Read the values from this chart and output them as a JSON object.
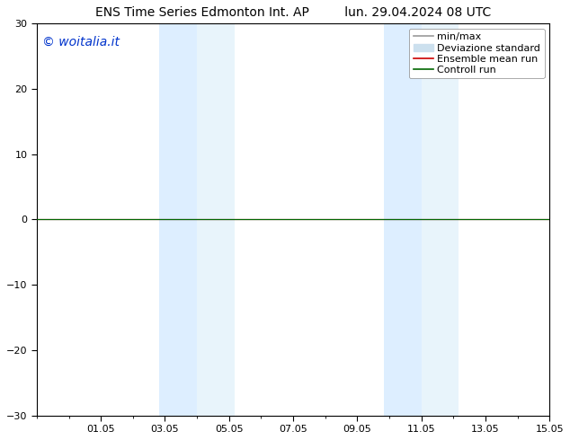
{
  "title": "ENS Time Series Edmonton Int. AP         lun. 29.04.2024 08 UTC",
  "watermark": "© woitalia.it",
  "watermark_color": "#0033cc",
  "ylim": [
    -30,
    30
  ],
  "yticks": [
    -30,
    -20,
    -10,
    0,
    10,
    20,
    30
  ],
  "xtick_labels": [
    "01.05",
    "03.05",
    "05.05",
    "07.05",
    "09.05",
    "11.05",
    "13.05",
    "15.05"
  ],
  "xtick_positions": [
    2,
    4,
    6,
    8,
    10,
    12,
    14,
    16
  ],
  "x_min": 0,
  "x_max": 16,
  "shaded_bands": [
    {
      "x_start": 3.83,
      "x_end": 5.0,
      "color": "#ddeeff"
    },
    {
      "x_start": 5.0,
      "x_end": 6.17,
      "color": "#e8f4fb"
    },
    {
      "x_start": 10.83,
      "x_end": 12.0,
      "color": "#ddeeff"
    },
    {
      "x_start": 12.0,
      "x_end": 13.17,
      "color": "#e8f4fb"
    }
  ],
  "flat_line_y": 0.0,
  "ensemble_color": "#cc0000",
  "control_color": "#006600",
  "minmax_color": "#999999",
  "std_color": "#cce0ee",
  "bg_color": "#ffffff",
  "axes_bg_color": "#ffffff",
  "title_fontsize": 10,
  "tick_fontsize": 8,
  "watermark_fontsize": 10,
  "legend_fontsize": 8
}
